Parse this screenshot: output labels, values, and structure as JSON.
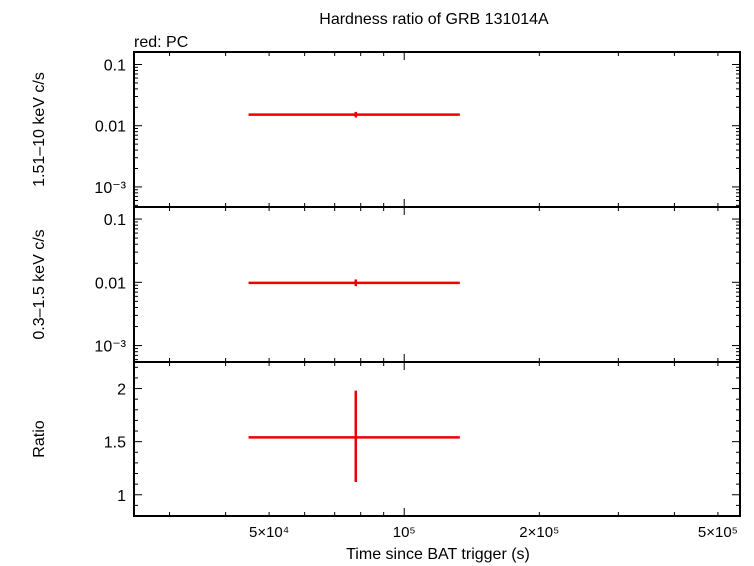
{
  "title": "Hardness ratio of GRB 131014A",
  "legend_text": "red: PC",
  "chart_data": {
    "type": "scatter",
    "title": "Hardness ratio of GRB 131014A",
    "xlabel": "Time since BAT trigger (s)",
    "xscale": "log",
    "xlim": [
      25000,
      560000
    ],
    "x_ticks": [
      {
        "value": 50000,
        "label": "5×10⁴"
      },
      {
        "value": 100000,
        "label": "10⁵"
      },
      {
        "value": 200000,
        "label": "2×10⁵"
      },
      {
        "value": 500000,
        "label": "5×10⁵"
      }
    ],
    "colors": {
      "PC": "#ee0000"
    },
    "panels": [
      {
        "id": "hard",
        "ylabel": "1.51–10 keV c/s",
        "yscale": "log",
        "ylim": [
          0.00047,
          0.16
        ],
        "y_ticks": [
          {
            "value": 0.1,
            "label": "0.1"
          },
          {
            "value": 0.01,
            "label": "0.01"
          },
          {
            "value": 0.001,
            "label": "10⁻³"
          }
        ],
        "series": [
          {
            "name": "PC",
            "points": [
              {
                "x": 78000,
                "x_lo": 45000,
                "x_hi": 133000,
                "y": 0.0152,
                "y_lo": 0.0136,
                "y_hi": 0.0168
              }
            ]
          }
        ]
      },
      {
        "id": "soft",
        "ylabel": "0.3–1.5 keV c/s",
        "yscale": "log",
        "ylim": [
          0.00055,
          0.155
        ],
        "y_ticks": [
          {
            "value": 0.1,
            "label": "0.1"
          },
          {
            "value": 0.01,
            "label": "0.01"
          },
          {
            "value": 0.001,
            "label": "10⁻³"
          }
        ],
        "series": [
          {
            "name": "PC",
            "points": [
              {
                "x": 78000,
                "x_lo": 45000,
                "x_hi": 133000,
                "y": 0.0098,
                "y_lo": 0.0087,
                "y_hi": 0.0111
              }
            ]
          }
        ]
      },
      {
        "id": "ratio",
        "ylabel": "Ratio",
        "yscale": "linear",
        "ylim": [
          0.8,
          2.25
        ],
        "y_ticks": [
          {
            "value": 1,
            "label": "1"
          },
          {
            "value": 1.5,
            "label": "1.5"
          },
          {
            "value": 2,
            "label": "2"
          }
        ],
        "series": [
          {
            "name": "PC",
            "points": [
              {
                "x": 78000,
                "x_lo": 45000,
                "x_hi": 133000,
                "y": 1.54,
                "y_lo": 1.12,
                "y_hi": 1.98
              }
            ]
          }
        ]
      }
    ]
  }
}
